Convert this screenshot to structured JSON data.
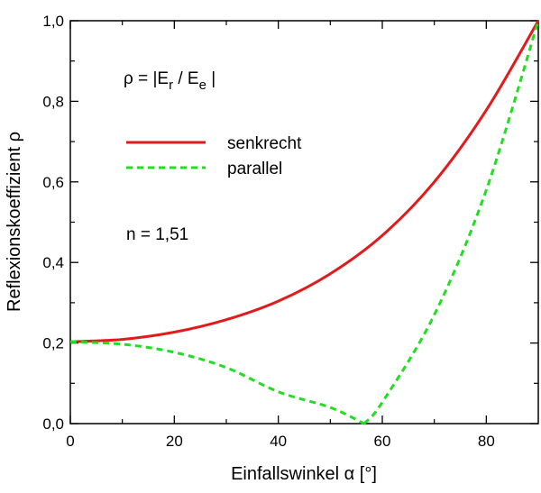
{
  "chart_data": {
    "type": "line",
    "title": "",
    "xlabel": "Einfallswinkel α [°]",
    "ylabel": "Reflexionskoeffizient ρ",
    "xlim": [
      0,
      90
    ],
    "ylim": [
      0,
      1.0
    ],
    "x_ticks": [
      0,
      20,
      40,
      60,
      80
    ],
    "y_ticks": [
      0,
      0.2,
      0.4,
      0.6,
      0.8,
      1.0
    ],
    "x_tick_labels": [
      "0",
      "20",
      "40",
      "60",
      "80"
    ],
    "y_tick_labels": [
      "0,0",
      "0,2",
      "0,4",
      "0,6",
      "0,8",
      "1,0"
    ],
    "grid": false,
    "legend_position": "top-left",
    "annotations": {
      "formula_prefix": "ρ = |E",
      "formula_sub1": "r",
      "formula_mid": " / E",
      "formula_sub2": "e",
      "formula_suffix": " |",
      "refractive_index": "n = 1,51"
    },
    "series": [
      {
        "name": "senkrecht",
        "color": "#e31a1c",
        "style": "solid",
        "x": [
          0,
          10,
          20,
          30,
          40,
          50,
          60,
          70,
          80,
          90
        ],
        "values": [
          0.203,
          0.209,
          0.227,
          0.258,
          0.304,
          0.372,
          0.467,
          0.6,
          0.778,
          1.0
        ]
      },
      {
        "name": "parallel",
        "color": "#22dd22",
        "style": "dashed",
        "x": [
          0,
          10,
          20,
          30,
          40,
          50,
          56.5,
          60,
          70,
          80,
          90
        ],
        "values": [
          0.203,
          0.197,
          0.177,
          0.139,
          0.079,
          0.04,
          0.0,
          0.053,
          0.27,
          0.58,
          1.0
        ]
      }
    ]
  }
}
